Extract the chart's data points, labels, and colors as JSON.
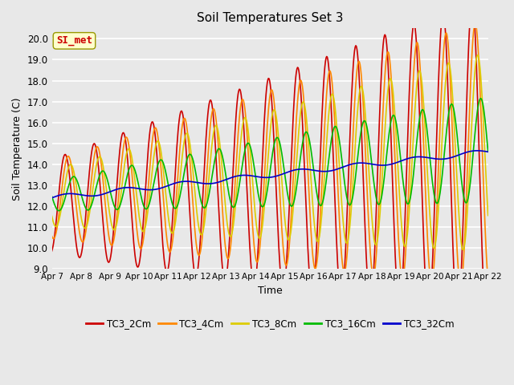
{
  "title": "Soil Temperatures Set 3",
  "xlabel": "Time",
  "ylabel": "Soil Temperature (C)",
  "ylim": [
    9.0,
    20.5
  ],
  "yticks": [
    9.0,
    10.0,
    11.0,
    12.0,
    13.0,
    14.0,
    15.0,
    16.0,
    17.0,
    18.0,
    19.0,
    20.0
  ],
  "bg_color": "#e8e8e8",
  "series": {
    "TC3_2Cm": {
      "color": "#cc0000",
      "lw": 1.2
    },
    "TC3_4Cm": {
      "color": "#ff8800",
      "lw": 1.2
    },
    "TC3_8Cm": {
      "color": "#ddcc00",
      "lw": 1.2
    },
    "TC3_16Cm": {
      "color": "#00bb00",
      "lw": 1.2
    },
    "TC3_32Cm": {
      "color": "#0000cc",
      "lw": 1.2
    }
  },
  "watermark": "SI_met",
  "watermark_color": "#cc0000",
  "watermark_bg": "#ffffcc",
  "n_days": 15,
  "start_day": 7
}
